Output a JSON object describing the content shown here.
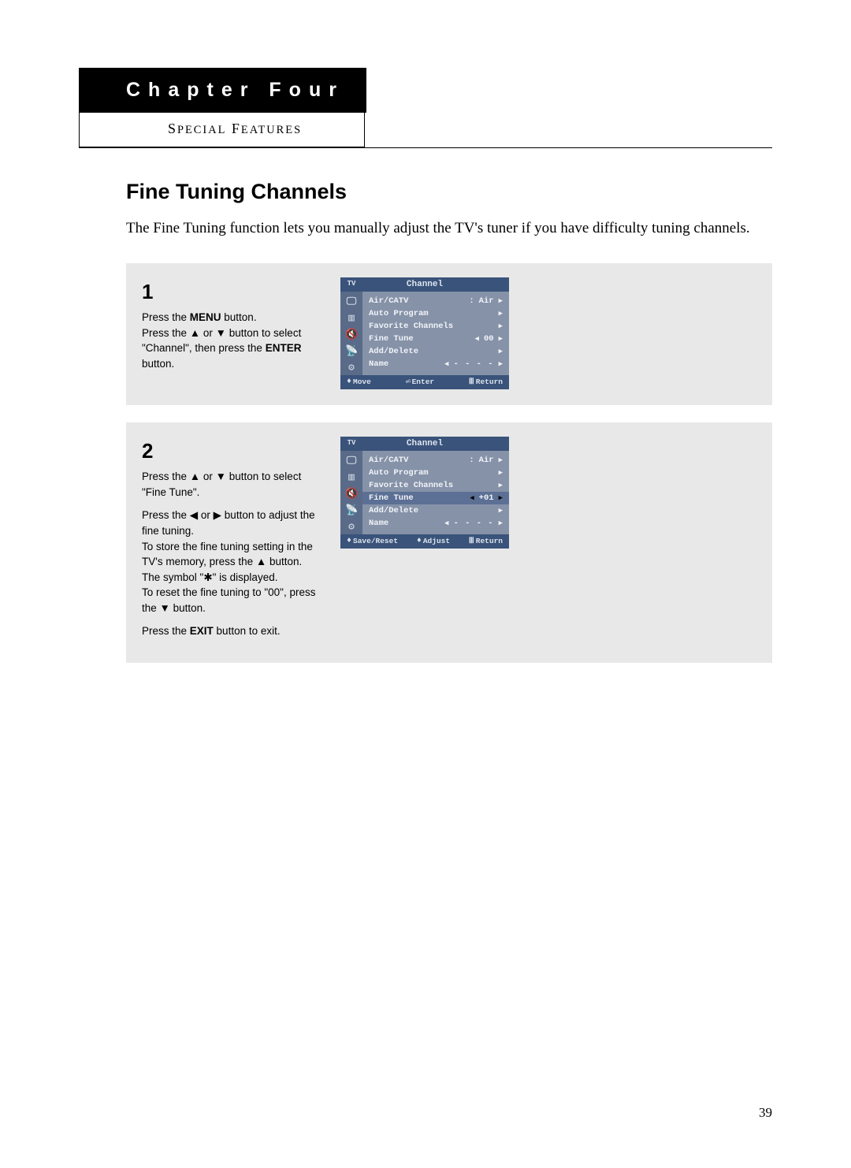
{
  "chapter": {
    "label": "Chapter Four",
    "subtitle": "Special Features"
  },
  "section": {
    "heading": "Fine Tuning Channels",
    "intro": "The Fine Tuning function lets you manually adjust the TV's tuner if you have difficulty tuning channels."
  },
  "steps": {
    "one": {
      "num": "1",
      "line1a": "Press the ",
      "line1b": "MENU",
      "line1c": " button.",
      "line2a": "Press the ▲ or ▼ button to select \"Channel\", then press the ",
      "line2b": "ENTER",
      "line2c": " button."
    },
    "two": {
      "num": "2",
      "p1": "Press the ▲ or ▼ button to select \"Fine Tune\".",
      "p2": "Press the ◀ or ▶ button to adjust the fine tuning.",
      "p3": "To store the fine tuning setting in the TV's memory, press the ▲ button.",
      "p4": "The symbol \"✱\" is displayed.",
      "p5": "To reset the fine tuning to \"00\", press the ▼ button.",
      "p6a": "Press the ",
      "p6b": "EXIT",
      "p6c": " button to exit."
    }
  },
  "osd1": {
    "tv": "TV",
    "title": "Channel",
    "rows": {
      "aircatv": {
        "label": "Air/CATV",
        "colon": ":",
        "value": "Air"
      },
      "autoprogram": {
        "label": "Auto Program"
      },
      "favorite": {
        "label": "Favorite Channels"
      },
      "finetune": {
        "label": "Fine Tune",
        "value": "00"
      },
      "adddelete": {
        "label": "Add/Delete"
      },
      "name": {
        "label": "Name",
        "value": "- - - -"
      }
    },
    "footer": {
      "move": "Move",
      "enter": "Enter",
      "return": "Return"
    },
    "arrows": {
      "left": "◀",
      "right": "▶",
      "updown": "♦",
      "enterIcon": "⏎",
      "returnIcon": "Ⅲ"
    },
    "colors": {
      "header_bg": "#3a537a",
      "header_fg": "#dce4ee",
      "sidebar_bg": "#596b88",
      "menu_bg": "#8592a8",
      "menu_fg": "#f2f4f8"
    }
  },
  "osd2": {
    "tv": "TV",
    "title": "Channel",
    "rows": {
      "aircatv": {
        "label": "Air/CATV",
        "colon": ":",
        "value": "Air"
      },
      "autoprogram": {
        "label": "Auto Program"
      },
      "favorite": {
        "label": "Favorite Channels"
      },
      "finetune": {
        "label": "Fine Tune",
        "value": "+01"
      },
      "adddelete": {
        "label": "Add/Delete"
      },
      "name": {
        "label": "Name",
        "value": "- - - -"
      }
    },
    "footer": {
      "save": "Save/Reset",
      "adjust": "Adjust",
      "return": "Return"
    },
    "arrows": {
      "updown": "♦",
      "leftright": "♦",
      "returnIcon": "Ⅲ"
    }
  },
  "pageNumber": "39"
}
